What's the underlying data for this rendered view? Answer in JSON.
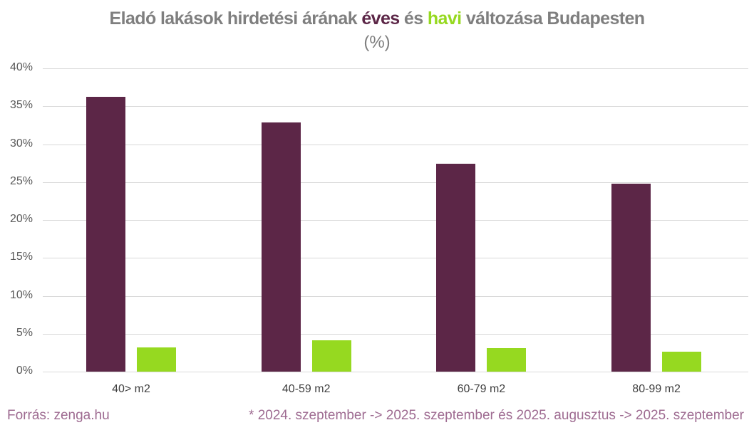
{
  "title": {
    "part1": "Eladó lakások hirdetési árának ",
    "highlight1": "éves",
    "part2": " és ",
    "highlight2": "havi",
    "part3": " változása Budapesten",
    "subtitle": "(%)"
  },
  "footer": {
    "source": "Forrás: zenga.hu",
    "note": "* 2024. szeptember -> 2025. szeptember és 2025. augusztus -> 2025. szeptember"
  },
  "colors": {
    "annual": "#5c2647",
    "monthly": "#96d920",
    "title_gray": "#7f7f7f",
    "footer": "#9e6b91"
  },
  "chart_data": {
    "type": "bar",
    "title": "Eladó lakások hirdetési árának éves és havi változása Budapesten (%)",
    "categories": [
      "40> m2",
      "40-59 m2",
      "60-79 m2",
      "80-99 m2"
    ],
    "series": [
      {
        "name": "éves",
        "color": "#5c2647",
        "values": [
          36.2,
          32.9,
          27.4,
          24.8
        ]
      },
      {
        "name": "havi",
        "color": "#96d920",
        "values": [
          3.2,
          4.1,
          3.1,
          2.6
        ]
      }
    ],
    "xlabel": "",
    "ylabel": "",
    "ylim": [
      0,
      40
    ],
    "yticks": [
      "0%",
      "5%",
      "10%",
      "15%",
      "20%",
      "25%",
      "30%",
      "35%",
      "40%"
    ],
    "grid": true,
    "legend": "none (colors encoded in title)"
  }
}
